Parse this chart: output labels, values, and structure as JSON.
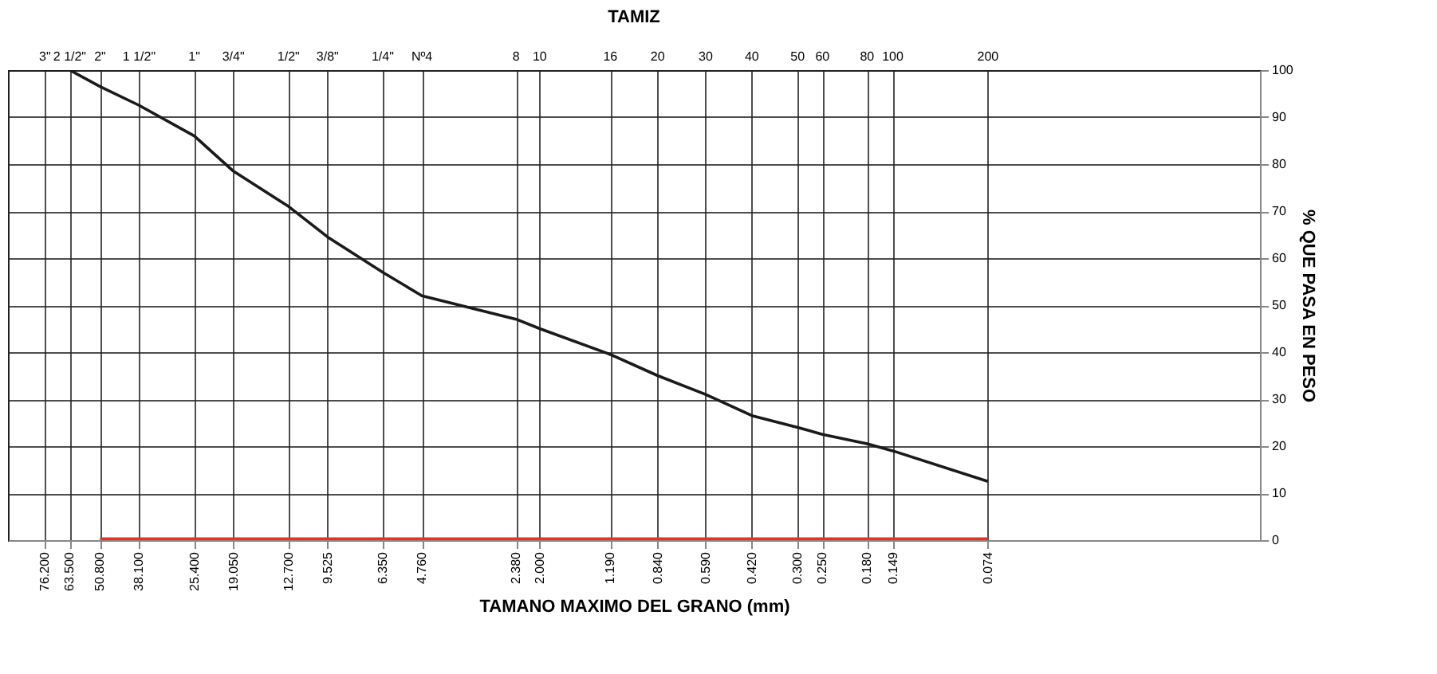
{
  "chart_data": {
    "type": "line",
    "xlabel": "TAMANO  MAXIMO DEL GRANO (mm)",
    "x2label": "TAMIZ",
    "ylabel": "% QUE PASA EN PESO",
    "log": "x",
    "xlim": [
      100,
      0.01
    ],
    "ylim": [
      0,
      100
    ],
    "yticks": [
      0,
      10,
      20,
      30,
      40,
      50,
      60,
      70,
      80,
      90,
      100
    ],
    "grid": true,
    "legend": false,
    "marker": "none",
    "line_style": "solid",
    "xticks": [
      {
        "value": 76.2,
        "label": "76.200"
      },
      {
        "value": 63.5,
        "label": "63.500"
      },
      {
        "value": 50.8,
        "label": "50.800"
      },
      {
        "value": 38.1,
        "label": "38.100"
      },
      {
        "value": 25.4,
        "label": "25.400"
      },
      {
        "value": 19.05,
        "label": "19.050"
      },
      {
        "value": 12.7,
        "label": "12.700"
      },
      {
        "value": 9.525,
        "label": "9.525"
      },
      {
        "value": 6.35,
        "label": "6.350"
      },
      {
        "value": 4.76,
        "label": "4.760"
      },
      {
        "value": 2.38,
        "label": "2.380"
      },
      {
        "value": 2,
        "label": "2.000"
      },
      {
        "value": 1.19,
        "label": "1.190"
      },
      {
        "value": 0.84,
        "label": "0.840"
      },
      {
        "value": 0.59,
        "label": "0.590"
      },
      {
        "value": 0.42,
        "label": "0.420"
      },
      {
        "value": 0.3,
        "label": "0.300"
      },
      {
        "value": 0.25,
        "label": "0.250"
      },
      {
        "value": 0.18,
        "label": "0.180"
      },
      {
        "value": 0.149,
        "label": "0.149"
      },
      {
        "value": 0.074,
        "label": "0.074"
      }
    ],
    "annotations": [
      {
        "text": "3\"",
        "x": 76.2
      },
      {
        "text": "2 1/2\"",
        "x": 63.5
      },
      {
        "text": "2\"",
        "x": 50.8
      },
      {
        "text": "1 1/2\"",
        "x": 38.1
      },
      {
        "text": "1\"",
        "x": 25.4
      },
      {
        "text": "3/4\"",
        "x": 19.05
      },
      {
        "text": "1/2\"",
        "x": 12.7
      },
      {
        "text": "3/8\"",
        "x": 9.525
      },
      {
        "text": "1/4\"",
        "x": 6.35
      },
      {
        "text": "Nº4",
        "x": 4.76
      },
      {
        "text": "8",
        "x": 2.38
      },
      {
        "text": "10",
        "x": 2
      },
      {
        "text": "16",
        "x": 1.19
      },
      {
        "text": "20",
        "x": 0.84
      },
      {
        "text": "30",
        "x": 0.59
      },
      {
        "text": "40",
        "x": 0.42
      },
      {
        "text": "50",
        "x": 0.3
      },
      {
        "text": "60",
        "x": 0.25
      },
      {
        "text": "80",
        "x": 0.18
      },
      {
        "text": "100",
        "x": 0.149
      },
      {
        "text": "200",
        "x": 0.074
      }
    ],
    "series": [
      {
        "color": "#1a1a1a",
        "x": [
          76.2,
          63.5,
          50.8,
          38.1,
          25.4,
          19.05,
          12.7,
          9.525,
          6.35,
          4.76,
          2.38,
          2,
          1.19,
          0.84,
          0.59,
          0.42,
          0.3,
          0.25,
          0.18,
          0.149,
          0.074
        ],
        "values": [
          100,
          100,
          96.5,
          92.5,
          86,
          78.5,
          71,
          64.5,
          57,
          52,
          47,
          45,
          39.5,
          35,
          31,
          26.5,
          24,
          22.5,
          20.5,
          19,
          12.5
        ]
      },
      {
        "color": "#e8302a",
        "x": [
          50.8,
          0.074
        ],
        "values": [
          0,
          0
        ]
      }
    ]
  }
}
